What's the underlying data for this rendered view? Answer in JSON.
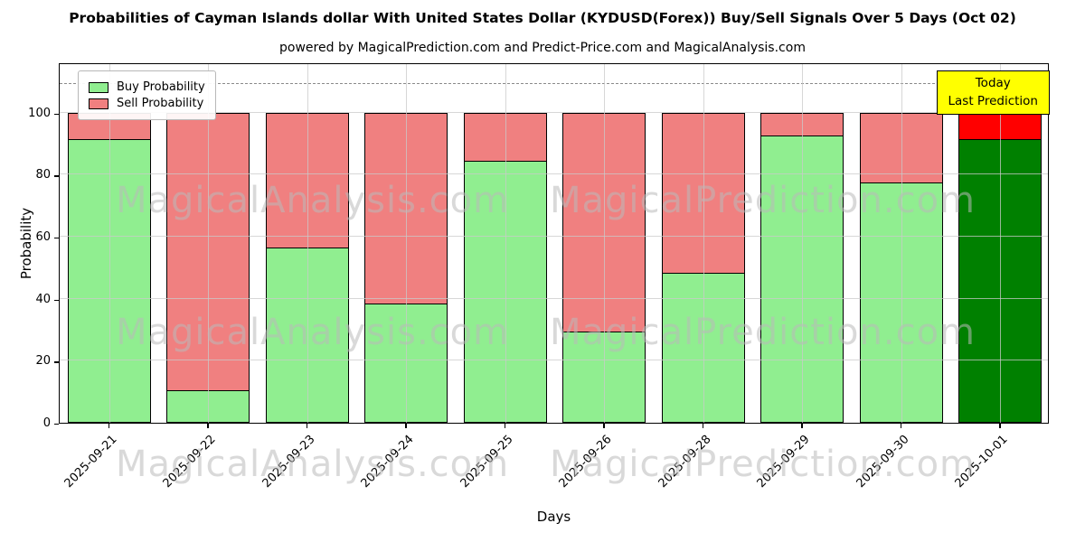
{
  "title": "Probabilities of Cayman Islands dollar With United States Dollar (KYDUSD(Forex)) Buy/Sell Signals Over 5 Days (Oct 02)",
  "subtitle": "powered by MagicalPrediction.com and Predict-Price.com and MagicalAnalysis.com",
  "legend": {
    "items": [
      {
        "label": "Buy Probability",
        "color": "#90EE90"
      },
      {
        "label": "Sell Probability",
        "color": "#F08080"
      }
    ]
  },
  "annotation": {
    "line1": "Today",
    "line2": "Last Prediction",
    "bg_color": "#FFFF00"
  },
  "watermarks": {
    "left_text": "MagicalAnalysis.com",
    "right_text": "MagicalPrediction.com"
  },
  "axes": {
    "xlabel": "Days",
    "ylabel": "Probability",
    "yticks": [
      0,
      20,
      40,
      60,
      80,
      100
    ],
    "ylim": [
      0,
      116
    ],
    "dashed_line_y": 110,
    "grid": "both"
  },
  "colors": {
    "buy": "#90EE90",
    "sell": "#F08080",
    "today_buy": "#008000",
    "today_sell": "#FF0000",
    "bar_edge": "#000000",
    "grid": "#c9c9c9",
    "dashed_line": "#8a8a8a"
  },
  "chart_data": {
    "type": "bar",
    "stacked": true,
    "title": "Probabilities of Cayman Islands dollar With United States Dollar (KYDUSD(Forex)) Buy/Sell Signals Over 5 Days (Oct 02)",
    "xlabel": "Days",
    "ylabel": "Probability",
    "ylim": [
      0,
      116
    ],
    "legend_position": "upper left",
    "grid": true,
    "categories": [
      "2025-09-21",
      "2025-09-22",
      "2025-09-23",
      "2025-09-24",
      "2025-09-25",
      "2025-09-26",
      "2025-09-28",
      "2025-09-29",
      "2025-09-30",
      "2025-10-01"
    ],
    "series": [
      {
        "name": "Buy Probability",
        "color": "#90EE90",
        "values": [
          91,
          10,
          56,
          38,
          84,
          29,
          48,
          92,
          77,
          91
        ]
      },
      {
        "name": "Sell Probability",
        "color": "#F08080",
        "values": [
          9,
          90,
          44,
          62,
          16,
          71,
          52,
          8,
          23,
          9
        ]
      }
    ],
    "highlight_last_bar": {
      "buy_color": "#008000",
      "sell_color": "#FF0000",
      "note": "Today / Last Prediction"
    },
    "annotation_line_y": 110
  }
}
